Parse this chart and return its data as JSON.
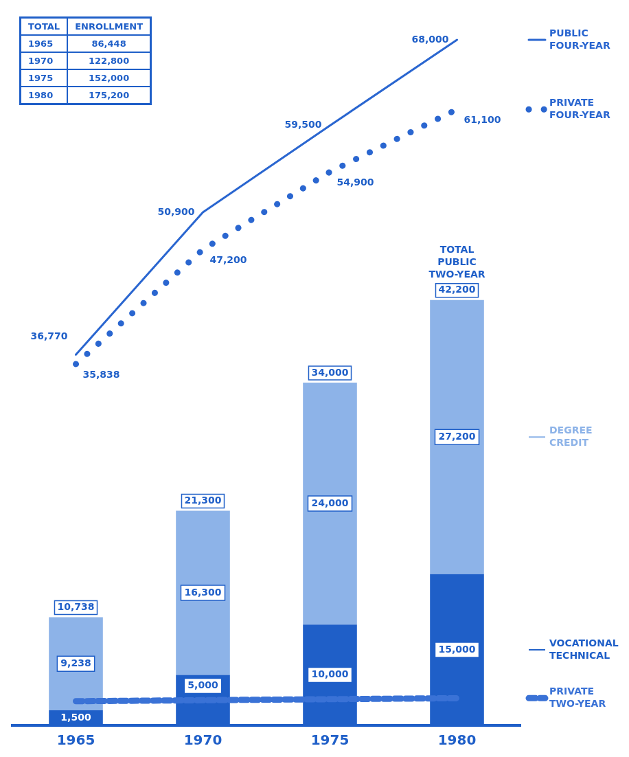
{
  "chart_data": {
    "type": "bar",
    "stacked": true,
    "categories": [
      "1965",
      "1970",
      "1975",
      "1980"
    ],
    "series": [
      {
        "name": "VOCATIONAL TECHNICAL",
        "color": "#1f5fc8",
        "values": [
          1500,
          5000,
          10000,
          15000
        ],
        "value_labels": [
          "1,500",
          "5,000",
          "10,000",
          "15,000"
        ]
      },
      {
        "name": "DEGREE CREDIT",
        "color": "#8db3e8",
        "values": [
          9238,
          16300,
          24000,
          27200
        ],
        "value_labels": [
          "9,238",
          "16,300",
          "24,000",
          "27,200"
        ]
      },
      {
        "name": "PRIVATE TWO-YEAR",
        "type": "line",
        "color": "#3a72d6",
        "values": [
          2400,
          2500,
          2600,
          2700
        ],
        "line_style": "dashed"
      },
      {
        "name": "PUBLIC FOUR-YEAR",
        "type": "line",
        "color": "#2a66d0",
        "values": [
          36770,
          50900,
          59500,
          68000
        ],
        "line_style": "solid",
        "value_labels": [
          "36,770",
          "50,900",
          "59,500",
          "68,000"
        ]
      },
      {
        "name": "PRIVATE FOUR-YEAR",
        "type": "line",
        "color": "#2a66d0",
        "values": [
          35838,
          47200,
          54900,
          61100
        ],
        "line_style": "dotted",
        "value_labels": [
          "35,838",
          "47,200",
          "54,900",
          "61,100"
        ]
      }
    ],
    "legend": "right",
    "totals": [
      "10,738",
      "21,300",
      "34,000",
      "42,200"
    ],
    "annotations": [
      {
        "text": "TOTAL PUBLIC TWO-YEAR",
        "x": "1980",
        "y": 42200
      },
      "TOTAL",
      "ENROLLMENT",
      "1965",
      "86,448",
      "1970",
      "122,800",
      "1975",
      "152,000",
      "1980",
      "175,200"
    ]
  }
}
